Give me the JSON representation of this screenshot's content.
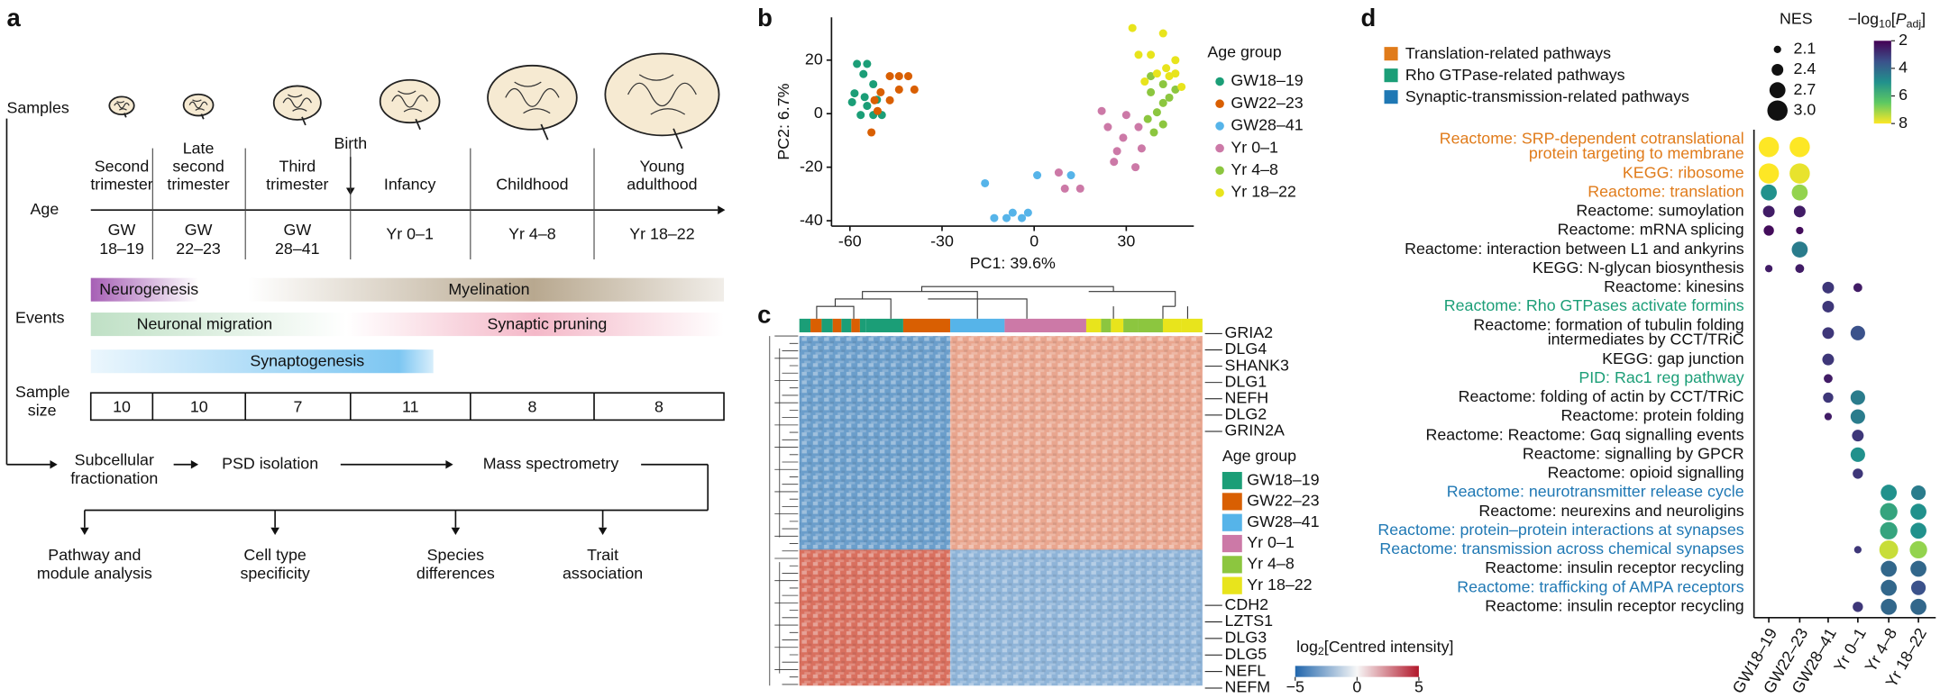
{
  "panel_a": {
    "label": "a",
    "row_labels": {
      "samples": "Samples",
      "age": "Age",
      "events": "Events",
      "sample_size": [
        "Sample",
        "size"
      ]
    },
    "stages": [
      [
        "Second",
        "trimester"
      ],
      [
        "Late",
        "second",
        "trimester"
      ],
      [
        "Third",
        "trimester"
      ],
      [
        "Infancy"
      ],
      [
        "Childhood"
      ],
      [
        "Young",
        "adulthood"
      ]
    ],
    "birth": "Birth",
    "age_groups": [
      [
        "GW",
        "18–19"
      ],
      [
        "GW",
        "22–23"
      ],
      [
        "GW",
        "28–41"
      ],
      [
        "Yr 0–1"
      ],
      [
        "Yr 4–8"
      ],
      [
        "Yr 18–22"
      ]
    ],
    "events": [
      "Neurogenesis",
      "Myelination",
      "Neuronal migration",
      "Synaptic pruning",
      "Synaptogenesis"
    ],
    "sample_sizes": [
      10,
      10,
      7,
      11,
      8,
      8
    ],
    "workflow": [
      [
        "Subcellular",
        "fractionation"
      ],
      [
        "PSD isolation"
      ],
      [
        "Mass spectrometry"
      ]
    ],
    "outputs": [
      [
        "Pathway and",
        "module analysis"
      ],
      [
        "Cell type",
        "specificity"
      ],
      [
        "Species",
        "differences"
      ],
      [
        "Trait",
        "association"
      ]
    ]
  },
  "chart_data": [
    {
      "type": "scatter",
      "label": "b",
      "xlabel": "PC1: 39.6%",
      "ylabel": "PC2: 6.7%",
      "legend_title": "Age group",
      "xlim": [
        -66,
        52
      ],
      "ylim": [
        -42,
        36
      ],
      "xticks": [
        -60,
        -30,
        0,
        30
      ],
      "yticks": [
        -40,
        -20,
        0,
        20
      ],
      "series": [
        {
          "name": "GW18–19",
          "color": "#1b9e77",
          "x": [
            -57.7,
            -54.4,
            -55.6,
            -52.4,
            -58.5,
            -55.2,
            -59.3,
            -54.4,
            -51.2,
            -56.5,
            -52.4,
            -49.6
          ],
          "values": [
            18.6,
            18.6,
            14.8,
            11,
            7.6,
            6.2,
            4.3,
            2.9,
            5.2,
            -0.5,
            -0.5,
            -0.5
          ]
        },
        {
          "name": "GW22–23",
          "color": "#d95f02",
          "x": [
            -47,
            -44,
            -41,
            -44,
            -39,
            -50,
            -47,
            -52,
            -51,
            -53
          ],
          "values": [
            14,
            14,
            14,
            9,
            9,
            8,
            5,
            5,
            1,
            -7
          ]
        },
        {
          "name": "GW28–41",
          "color": "#56b4e9",
          "x": [
            -16,
            -13,
            -9,
            -7,
            -4,
            -2,
            1,
            12
          ],
          "values": [
            -26,
            -39,
            -39,
            -37,
            -39,
            -37,
            -23,
            -23
          ]
        },
        {
          "name": "Yr 0–1",
          "color": "#cc79a7",
          "x": [
            22,
            30,
            24,
            34,
            29,
            27,
            35,
            26,
            33,
            8,
            15,
            10
          ],
          "values": [
            1,
            -0.5,
            -5,
            -5,
            -9,
            -14,
            -13,
            -18,
            -20,
            -22,
            -28,
            -28
          ]
        },
        {
          "name": "Yr 4–8",
          "color": "#8cc63f",
          "x": [
            38,
            42,
            46,
            38,
            44,
            42,
            40,
            37,
            42,
            39
          ],
          "values": [
            14,
            11,
            9,
            8,
            6,
            4,
            0.5,
            -2,
            -4,
            -7
          ]
        },
        {
          "name": "Yr 18–22",
          "color": "#e8e41c",
          "x": [
            32,
            42,
            34,
            38,
            46,
            43,
            40,
            44,
            36,
            46,
            48
          ],
          "values": [
            32,
            30,
            22,
            22,
            20,
            17,
            15,
            14,
            12,
            15,
            10
          ]
        }
      ]
    },
    {
      "type": "heatmap",
      "label": "c",
      "legend_title": "Age group",
      "genes_top": [
        "GRIA2",
        "DLG4",
        "SHANK3",
        "DLG1",
        "NEFH",
        "DLG2",
        "GRIN2A"
      ],
      "genes_bottom": [
        "CDH2",
        "LZTS1",
        "DLG3",
        "DLG5",
        "NEFL",
        "NEFM"
      ],
      "colorbar_title": [
        "log",
        "2",
        "[Centred intensity]"
      ],
      "clim": [
        -5,
        5
      ],
      "cticks": [
        {
          "value": -5,
          "label": "−5"
        },
        0,
        5
      ]
    },
    {
      "type": "dot",
      "label": "d",
      "categories": [
        "GW18–19",
        "GW22–23",
        "GW28–41",
        "Yr 0–1",
        "Yr 4–8",
        "Yr 18–22"
      ],
      "pathway_groups": [
        {
          "name": "Translation-related pathways",
          "color": "#e07b1a"
        },
        {
          "name": "Rho GTPase-related pathways",
          "color": "#1b9e77"
        },
        {
          "name": "Synaptic-transmission-related pathways",
          "color": "#1f78b4"
        }
      ],
      "size_title": "NES",
      "size_ticks": [
        2.1,
        2.4,
        2.7,
        {
          "value": 3,
          "label": "3.0"
        }
      ],
      "color_title": [
        "−log",
        "10",
        "[",
        "P",
        "adj",
        "]"
      ],
      "clim": [
        2,
        8
      ],
      "cticks": [
        2,
        4,
        6,
        8
      ],
      "rows": [
        {
          "label": [
            "Reactome: SRP-dependent cotranslational",
            "protein targeting to membrane"
          ],
          "group": 0,
          "nes": [
            3.0,
            3.0,
            null,
            null,
            null,
            null
          ],
          "logp": [
            8,
            8,
            null,
            null,
            null,
            null
          ]
        },
        {
          "label": [
            "KEGG: ribosome"
          ],
          "group": 0,
          "nes": [
            3.0,
            3.0,
            null,
            null,
            null,
            null
          ],
          "logp": [
            8,
            7.8,
            null,
            null,
            null,
            null
          ]
        },
        {
          "label": [
            "Reactome: translation"
          ],
          "group": 0,
          "nes": [
            2.7,
            2.7,
            null,
            null,
            null,
            null
          ],
          "logp": [
            5,
            7,
            null,
            null,
            null,
            null
          ]
        },
        {
          "label": [
            "Reactome: sumoylation"
          ],
          "nes": [
            2.4,
            2.4,
            null,
            null,
            null,
            null
          ],
          "logp": [
            2.5,
            2.5,
            null,
            null,
            null,
            null
          ]
        },
        {
          "label": [
            "Reactome: mRNA splicing"
          ],
          "nes": [
            2.3,
            2.1,
            null,
            null,
            null,
            null
          ],
          "logp": [
            2.2,
            2.2,
            null,
            null,
            null,
            null
          ]
        },
        {
          "label": [
            "Reactome: interaction between L1 and ankyrins"
          ],
          "nes": [
            null,
            2.7,
            null,
            null,
            null,
            null
          ],
          "logp": [
            null,
            4.5,
            null,
            null,
            null,
            null
          ]
        },
        {
          "label": [
            "KEGG: N-glycan biosynthesis"
          ],
          "nes": [
            2.1,
            2.2,
            null,
            null,
            null,
            null
          ],
          "logp": [
            2.5,
            2.5,
            null,
            null,
            null,
            null
          ]
        },
        {
          "label": [
            "Reactome: kinesins"
          ],
          "nes": [
            null,
            null,
            2.4,
            2.2,
            null,
            null
          ],
          "logp": [
            null,
            null,
            3,
            2.5,
            null,
            null
          ]
        },
        {
          "label": [
            "Reactome: Rho GTPases activate formins"
          ],
          "group": 1,
          "nes": [
            null,
            null,
            2.4,
            null,
            null,
            null
          ],
          "logp": [
            null,
            null,
            3,
            null,
            null,
            null
          ]
        },
        {
          "label": [
            "Reactome: formation of tubulin folding",
            "intermediates by CCT/TRiC"
          ],
          "nes": [
            null,
            null,
            2.4,
            2.6,
            null,
            null
          ],
          "logp": [
            null,
            null,
            3,
            3.5,
            null,
            null
          ]
        },
        {
          "label": [
            "KEGG: gap junction"
          ],
          "nes": [
            null,
            null,
            2.4,
            null,
            null,
            null
          ],
          "logp": [
            null,
            null,
            3,
            null,
            null,
            null
          ]
        },
        {
          "label": [
            "PID: Rac1 reg pathway"
          ],
          "group": 1,
          "nes": [
            null,
            null,
            2.2,
            null,
            null,
            null
          ],
          "logp": [
            null,
            null,
            2.5,
            null,
            null,
            null
          ]
        },
        {
          "label": [
            "Reactome: folding of actin by CCT/TRiC"
          ],
          "nes": [
            null,
            null,
            2.3,
            2.6,
            null,
            null
          ],
          "logp": [
            null,
            null,
            3,
            4.5,
            null,
            null
          ]
        },
        {
          "label": [
            "Reactome: protein folding"
          ],
          "nes": [
            null,
            null,
            2.1,
            2.6,
            null,
            null
          ],
          "logp": [
            null,
            null,
            2.5,
            4.5,
            null,
            null
          ]
        },
        {
          "label": [
            "Reactome: Reactome: Gαq signalling events"
          ],
          "nes": [
            null,
            null,
            null,
            2.4,
            null,
            null
          ],
          "logp": [
            null,
            null,
            null,
            3,
            null,
            null
          ]
        },
        {
          "label": [
            "Reactome: signalling by GPCR"
          ],
          "nes": [
            null,
            null,
            null,
            2.6,
            null,
            null
          ],
          "logp": [
            null,
            null,
            null,
            5,
            null,
            null
          ]
        },
        {
          "label": [
            "Reactome: opioid signalling"
          ],
          "nes": [
            null,
            null,
            null,
            2.3,
            null,
            null
          ],
          "logp": [
            null,
            null,
            null,
            3,
            null,
            null
          ]
        },
        {
          "label": [
            "Reactome: neurotransmitter release cycle"
          ],
          "group": 2,
          "nes": [
            null,
            null,
            null,
            null,
            2.7,
            2.6
          ],
          "logp": [
            null,
            null,
            null,
            null,
            5,
            4.5
          ]
        },
        {
          "label": [
            "Reactome: neurexins and neuroligins"
          ],
          "nes": [
            null,
            null,
            null,
            null,
            2.8,
            2.7
          ],
          "logp": [
            null,
            null,
            null,
            null,
            5.5,
            5
          ]
        },
        {
          "label": [
            "Reactome: protein–protein interactions at synapses"
          ],
          "group": 2,
          "nes": [
            null,
            null,
            null,
            null,
            2.8,
            2.7
          ],
          "logp": [
            null,
            null,
            null,
            null,
            5.5,
            5
          ]
        },
        {
          "label": [
            "Reactome: transmission across chemical synapses"
          ],
          "group": 2,
          "nes": [
            null,
            null,
            null,
            2.1,
            2.9,
            2.8
          ],
          "logp": [
            null,
            null,
            null,
            3,
            7.5,
            7
          ]
        },
        {
          "label": [
            "Reactome: insulin receptor recycling"
          ],
          "nes": [
            null,
            null,
            null,
            null,
            2.7,
            2.7
          ],
          "logp": [
            null,
            null,
            null,
            null,
            4,
            4
          ]
        },
        {
          "label": [
            "Reactome: trafficking of AMPA receptors"
          ],
          "group": 2,
          "nes": [
            null,
            null,
            null,
            null,
            2.7,
            2.6
          ],
          "logp": [
            null,
            null,
            null,
            null,
            4,
            3.5
          ]
        },
        {
          "label": [
            "Reactome: insulin receptor recycling"
          ],
          "nes": [
            null,
            null,
            null,
            2.3,
            2.7,
            2.7
          ],
          "logp": [
            null,
            null,
            null,
            3,
            4,
            4
          ]
        }
      ]
    }
  ]
}
